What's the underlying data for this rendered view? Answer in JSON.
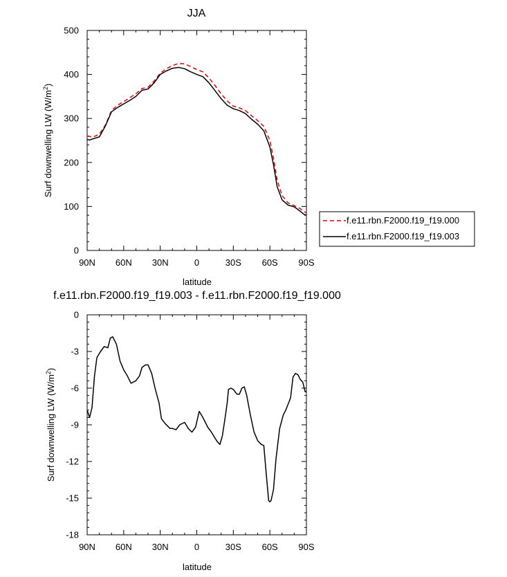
{
  "chart_data": [
    {
      "type": "line",
      "title": "JJA",
      "xlabel": "latitude",
      "ylabel": "Surf downwelling LW (W/m",
      "ylabel_sup": "2",
      "ylabel_close": ")",
      "xlim": [
        90,
        -90
      ],
      "ylim": [
        0,
        500
      ],
      "xticks": [
        90,
        60,
        30,
        0,
        -30,
        -60,
        -90
      ],
      "xtick_labels": [
        "90N",
        "60N",
        "30N",
        "0",
        "30S",
        "60S",
        "90S"
      ],
      "yticks": [
        0,
        100,
        200,
        300,
        400,
        500
      ],
      "ytick_labels": [
        "0",
        "100",
        "200",
        "300",
        "400",
        "500"
      ],
      "x": [
        90,
        88,
        85,
        80,
        75,
        70,
        65,
        60,
        55,
        50,
        45,
        40,
        35,
        30,
        25,
        20,
        15,
        10,
        5,
        0,
        -5,
        -10,
        -15,
        -20,
        -25,
        -30,
        -35,
        -40,
        -45,
        -50,
        -55,
        -60,
        -63,
        -66,
        -70,
        -75,
        -80,
        -85,
        -88,
        -90
      ],
      "series": [
        {
          "name": "f.e11.rbn.F2000.f19_f19.000",
          "color": "#e00000",
          "dash": "dashed",
          "values": [
            260,
            259,
            258,
            264,
            285,
            318,
            330,
            338,
            347,
            356,
            368,
            371,
            385,
            403,
            413,
            420,
            425,
            424,
            418,
            411,
            406,
            392,
            375,
            356,
            340,
            328,
            324,
            318,
            306,
            295,
            282,
            250,
            210,
            160,
            125,
            108,
            102,
            95,
            88,
            86
          ]
        },
        {
          "name": "f.e11.rbn.F2000.f19_f19.003",
          "color": "#000000",
          "dash": "solid",
          "values": [
            252,
            251,
            254,
            258,
            283,
            315,
            325,
            333,
            341,
            350,
            364,
            367,
            381,
            400,
            408,
            414,
            416,
            413,
            406,
            400,
            395,
            381,
            363,
            345,
            330,
            322,
            318,
            311,
            298,
            287,
            272,
            235,
            195,
            145,
            115,
            103,
            99,
            89,
            82,
            80
          ]
        }
      ],
      "legend_position": "right"
    },
    {
      "type": "line",
      "title": "f.e11.rbn.F2000.f19_f19.003 - f.e11.rbn.F2000.f19_f19.000",
      "xlabel": "latitude",
      "ylabel": "Surf downwelling LW (W/m",
      "ylabel_sup": "2",
      "ylabel_close": ")",
      "xlim": [
        90,
        -90
      ],
      "ylim": [
        -18,
        0
      ],
      "xticks": [
        90,
        60,
        30,
        0,
        -30,
        -60,
        -90
      ],
      "xtick_labels": [
        "90N",
        "60N",
        "30N",
        "0",
        "30S",
        "60S",
        "90S"
      ],
      "yticks": [
        0,
        -3,
        -6,
        -9,
        -12,
        -15,
        -18
      ],
      "ytick_labels": [
        "0",
        "-3",
        "-6",
        "-9",
        "-12",
        "-15",
        "-18"
      ],
      "x": [
        90,
        88,
        86,
        84,
        82,
        79,
        76,
        73,
        71,
        69,
        66,
        63,
        60,
        57,
        54,
        50,
        47,
        45,
        42,
        40,
        37,
        34,
        31,
        29,
        26,
        22,
        20,
        17,
        14,
        10,
        7,
        4,
        1,
        -2,
        -5,
        -9,
        -12,
        -15,
        -17,
        -19,
        -21,
        -23,
        -25,
        -26,
        -28,
        -30,
        -33,
        -35,
        -37,
        -39,
        -41,
        -44,
        -47,
        -50,
        -53,
        -55,
        -57,
        -59,
        -60,
        -61,
        -63,
        -65,
        -68,
        -71,
        -73,
        -75,
        -77,
        -79,
        -81,
        -83,
        -85,
        -87,
        -89,
        -90
      ],
      "series": [
        {
          "name": "",
          "color": "#000000",
          "dash": "solid",
          "values": [
            -7.8,
            -8.4,
            -7.6,
            -5.0,
            -3.5,
            -3.0,
            -2.6,
            -2.7,
            -1.9,
            -1.8,
            -2.4,
            -3.8,
            -4.5,
            -5.0,
            -5.6,
            -5.4,
            -5.0,
            -4.3,
            -4.1,
            -4.1,
            -4.8,
            -6.1,
            -7.2,
            -8.5,
            -8.9,
            -9.3,
            -9.3,
            -9.4,
            -9.0,
            -8.8,
            -9.3,
            -9.6,
            -9.2,
            -7.9,
            -8.4,
            -9.2,
            -9.6,
            -10.1,
            -10.4,
            -10.6,
            -9.9,
            -8.6,
            -7.2,
            -6.1,
            -6.0,
            -6.1,
            -6.5,
            -6.5,
            -6.0,
            -5.9,
            -6.6,
            -8.2,
            -9.6,
            -10.3,
            -10.6,
            -10.7,
            -13.0,
            -15.2,
            -15.3,
            -15.2,
            -14.3,
            -11.8,
            -9.3,
            -8.2,
            -7.8,
            -7.3,
            -6.8,
            -5.1,
            -4.8,
            -4.9,
            -5.3,
            -5.5,
            -6.3,
            -6.3
          ]
        }
      ]
    }
  ]
}
